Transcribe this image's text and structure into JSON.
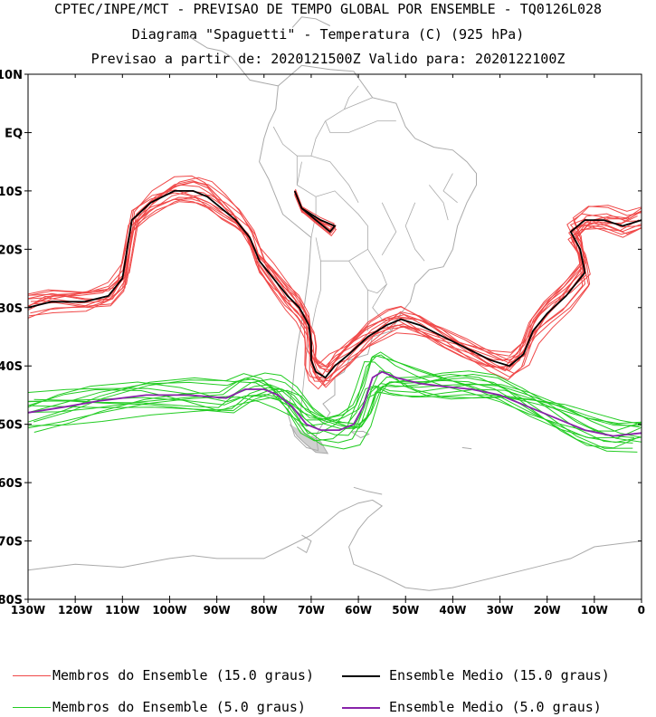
{
  "header": {
    "line1": "CPTEC/INPE/MCT - PREVISAO DE TEMPO GLOBAL POR ENSEMBLE - TQ0126L028",
    "line2": "Diagrama \"Spaguetti\" - Temperatura (C) (925 hPa)",
    "line3": "Previsao a partir de: 2020121500Z  Valido para: 2020122100Z"
  },
  "map": {
    "lat_ticks": [
      "10N",
      "EQ",
      "10S",
      "20S",
      "30S",
      "40S",
      "50S",
      "60S",
      "70S",
      "80S"
    ],
    "lon_ticks": [
      "130W",
      "120W",
      "110W",
      "100W",
      "90W",
      "80W",
      "70W",
      "60W",
      "50W",
      "40W",
      "30W",
      "20W",
      "10W",
      "0"
    ],
    "lat_range": [
      10,
      -80
    ],
    "lon_range": [
      -130,
      0
    ],
    "land_color": "#aaaaaa",
    "member15_color": "#f04848",
    "mean15_color": "#000000",
    "member5_color": "#22cc22",
    "mean5_color": "#8822aa"
  },
  "legend": {
    "member15_label": "Membros do Ensemble (15.0 graus)",
    "mean15_label": "Ensemble Medio (15.0 graus)",
    "member5_label": "Membros do Ensemble (5.0 graus)",
    "mean5_label": "Ensemble Medio (5.0 graus)"
  }
}
